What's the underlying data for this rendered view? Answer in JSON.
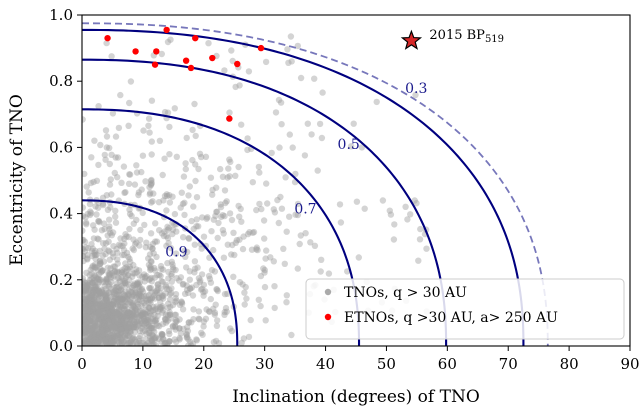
{
  "chart_data": {
    "type": "scatter",
    "xlabel": "Inclination (degrees) of TNO",
    "ylabel": "Eccentricity of TNO",
    "xlim": [
      0,
      90
    ],
    "ylim": [
      0,
      1.0
    ],
    "xticks": [
      "0",
      "10",
      "20",
      "30",
      "40",
      "50",
      "60",
      "70",
      "80",
      "90"
    ],
    "yticks": [
      "0.0",
      "0.2",
      "0.4",
      "0.6",
      "0.8",
      "1.0"
    ],
    "grid": false,
    "legend_position": "lower-right",
    "legend": [
      {
        "label": "TNOs, q > 30 AU",
        "color": "#aaaaaa"
      },
      {
        "label": "ETNOs, q >30 AU, a> 250 AU",
        "color": "#ff0000"
      }
    ],
    "contours": [
      {
        "label": "0.9",
        "intercept_e": 0.44,
        "intercept_i": 25.5,
        "color": "#00007f",
        "style": "solid"
      },
      {
        "label": "0.7",
        "intercept_e": 0.715,
        "intercept_i": 45.5,
        "color": "#00007f",
        "style": "solid"
      },
      {
        "label": "0.5",
        "intercept_e": 0.865,
        "intercept_i": 59.8,
        "color": "#00007f",
        "style": "solid"
      },
      {
        "label": "0.3",
        "intercept_e": 0.955,
        "intercept_i": 72.5,
        "color": "#00007f",
        "style": "solid"
      },
      {
        "label": "",
        "intercept_e": 0.975,
        "intercept_i": 76.5,
        "color": "#7777bb",
        "style": "dashed"
      }
    ],
    "etnos": [
      {
        "x": 4.2,
        "y": 0.93
      },
      {
        "x": 8.8,
        "y": 0.89
      },
      {
        "x": 12.2,
        "y": 0.89
      },
      {
        "x": 13.9,
        "y": 0.955
      },
      {
        "x": 18.6,
        "y": 0.93
      },
      {
        "x": 29.4,
        "y": 0.9
      },
      {
        "x": 12.0,
        "y": 0.85
      },
      {
        "x": 17.1,
        "y": 0.862
      },
      {
        "x": 17.9,
        "y": 0.84
      },
      {
        "x": 21.4,
        "y": 0.87
      },
      {
        "x": 25.5,
        "y": 0.852
      },
      {
        "x": 24.2,
        "y": 0.687
      }
    ],
    "special_object": {
      "label": "2015 BP",
      "subscript": "519",
      "x": 54.1,
      "y": 0.922,
      "color": "#d62728"
    },
    "tno_count_approx": 1800
  }
}
